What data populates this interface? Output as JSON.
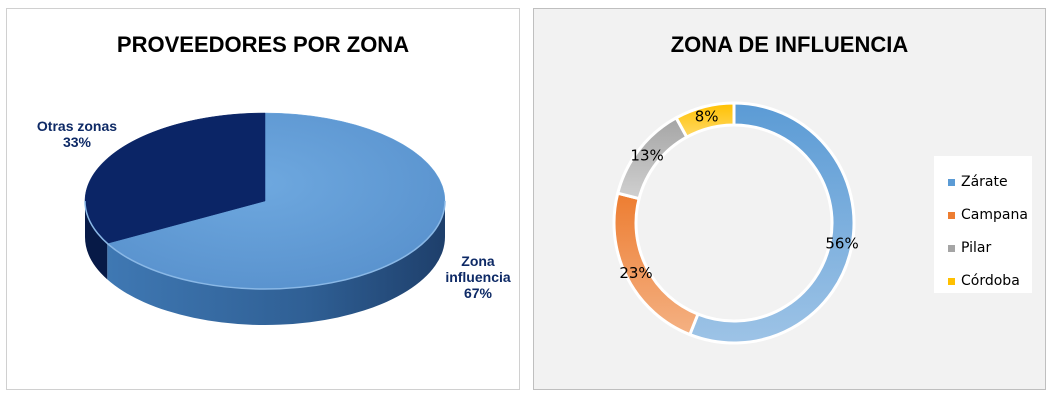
{
  "chart_data": [
    {
      "type": "pie",
      "title": "PROVEEDORES POR ZONA",
      "categories": [
        "Zona influencia",
        "Otras zonas"
      ],
      "label_lines": [
        [
          "Zona",
          "influencia",
          "67%"
        ],
        [
          "Otras zonas",
          "33%"
        ]
      ],
      "values": [
        67,
        33
      ],
      "labels": [
        "67%",
        "33%"
      ],
      "colors": [
        "#5b9bd5",
        "#0b2566"
      ]
    },
    {
      "type": "pie",
      "subtype": "doughnut",
      "title": "ZONA DE INFLUENCIA",
      "categories": [
        "Zárate",
        "Campana",
        "Pilar",
        "Córdoba"
      ],
      "values": [
        56,
        23,
        13,
        8
      ],
      "labels": [
        "56%",
        "23%",
        "13%",
        "8%"
      ],
      "colors": [
        "#5b9bd5",
        "#ed7d31",
        "#a5a5a5",
        "#ffc000"
      ],
      "legend": "right"
    }
  ]
}
